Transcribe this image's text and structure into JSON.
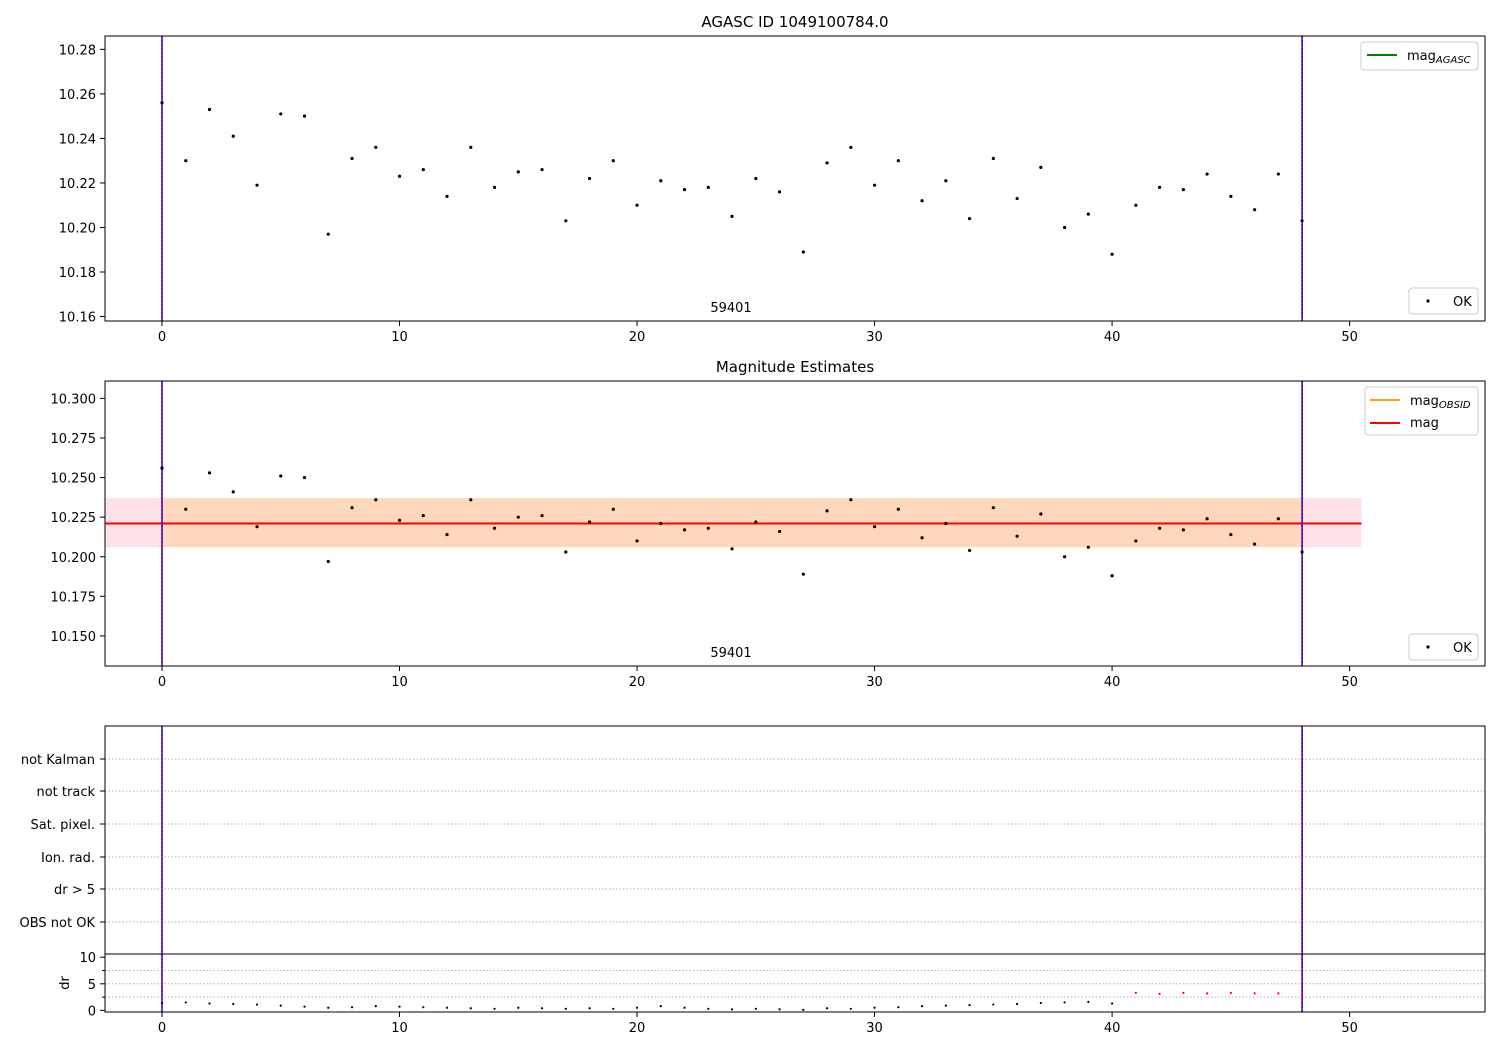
{
  "chart_data": [
    {
      "type": "scatter",
      "title": "AGASC ID 1049100784.0",
      "xlim": [
        -2.4,
        55.7
      ],
      "ylim": [
        10.158,
        10.286
      ],
      "xticks": [
        0,
        10,
        20,
        30,
        40,
        50
      ],
      "yticks": [
        10.16,
        10.18,
        10.2,
        10.22,
        10.24,
        10.26,
        10.28
      ],
      "ytick_labels": [
        "10.16",
        "10.18",
        "10.20",
        "10.22",
        "10.24",
        "10.26",
        "10.28"
      ],
      "vlines": [
        0,
        48
      ],
      "annotation": {
        "text": "59401",
        "x": 23.8
      },
      "legend_upper": {
        "entries": [
          {
            "label": "mag",
            "subscript": "AGASC",
            "color": "#008000"
          }
        ],
        "placement": "upper-right"
      },
      "legend_lower": {
        "entries": [
          {
            "label": "OK"
          }
        ],
        "placement": "lower-right"
      },
      "series": [
        {
          "name": "OK",
          "x": [
            0,
            1,
            2,
            3,
            4,
            5,
            6,
            7,
            8,
            9,
            10,
            11,
            12,
            13,
            14,
            15,
            16,
            17,
            18,
            19,
            20,
            21,
            22,
            23,
            24,
            25,
            26,
            27,
            28,
            29,
            30,
            31,
            32,
            33,
            34,
            35,
            36,
            37,
            38,
            39,
            40,
            41,
            42,
            43,
            44,
            45,
            46,
            47,
            48
          ],
          "y": [
            10.256,
            10.23,
            10.253,
            10.241,
            10.219,
            10.251,
            10.25,
            10.197,
            10.231,
            10.236,
            10.223,
            10.226,
            10.214,
            10.236,
            10.218,
            10.225,
            10.226,
            10.203,
            10.222,
            10.23,
            10.21,
            10.221,
            10.217,
            10.218,
            10.205,
            10.222,
            10.216,
            10.189,
            10.229,
            10.236,
            10.219,
            10.23,
            10.212,
            10.221,
            10.204,
            10.231,
            10.213,
            10.227,
            10.2,
            10.206,
            10.188,
            10.21,
            10.218,
            10.217,
            10.224,
            10.214,
            10.208,
            10.224,
            10.203
          ]
        }
      ]
    },
    {
      "type": "scatter",
      "title": "Magnitude Estimates",
      "xlim": [
        -2.4,
        55.7
      ],
      "ylim": [
        10.131,
        10.311
      ],
      "xticks": [
        0,
        10,
        20,
        30,
        40,
        50
      ],
      "yticks": [
        10.15,
        10.175,
        10.2,
        10.225,
        10.25,
        10.275,
        10.3
      ],
      "ytick_labels": [
        "10.150",
        "10.175",
        "10.200",
        "10.225",
        "10.250",
        "10.275",
        "10.300"
      ],
      "vlines": [
        0,
        48
      ],
      "annotation": {
        "text": "59401",
        "x": 23.8
      },
      "mag_line": {
        "y": 10.221,
        "x0": -2.4,
        "x1": 50.5
      },
      "mag_band": {
        "y0": 10.206,
        "y1": 10.237,
        "x0": -2.4,
        "x1": 50.5
      },
      "obsid_band": {
        "y0": 10.206,
        "y1": 10.237,
        "x0": 0,
        "x1": 48
      },
      "legend_upper": {
        "entries": [
          {
            "label": "mag",
            "subscript": "OBSID",
            "color": "#ffa500"
          },
          {
            "label": "mag",
            "subscript": "",
            "color": "#ff0000"
          }
        ],
        "placement": "upper-right"
      },
      "legend_lower": {
        "entries": [
          {
            "label": "OK"
          }
        ],
        "placement": "lower-right"
      },
      "series": [
        {
          "name": "OK",
          "x": [
            0,
            1,
            2,
            3,
            4,
            5,
            6,
            7,
            8,
            9,
            10,
            11,
            12,
            13,
            14,
            15,
            16,
            17,
            18,
            19,
            20,
            21,
            22,
            23,
            24,
            25,
            26,
            27,
            28,
            29,
            30,
            31,
            32,
            33,
            34,
            35,
            36,
            37,
            38,
            39,
            40,
            41,
            42,
            43,
            44,
            45,
            46,
            47,
            48
          ],
          "y": [
            10.256,
            10.23,
            10.253,
            10.241,
            10.219,
            10.251,
            10.25,
            10.197,
            10.231,
            10.236,
            10.223,
            10.226,
            10.214,
            10.236,
            10.218,
            10.225,
            10.226,
            10.203,
            10.222,
            10.23,
            10.21,
            10.221,
            10.217,
            10.218,
            10.205,
            10.222,
            10.216,
            10.189,
            10.229,
            10.236,
            10.219,
            10.23,
            10.212,
            10.221,
            10.204,
            10.231,
            10.213,
            10.227,
            10.2,
            10.206,
            10.188,
            10.21,
            10.218,
            10.217,
            10.224,
            10.214,
            10.208,
            10.224,
            10.203
          ]
        }
      ]
    },
    {
      "type": "scatter",
      "title": "",
      "xlim": [
        -2.4,
        55.7
      ],
      "categories": [
        "not Kalman",
        "not track",
        "Sat. pixel.",
        "Ion. rad.",
        "dr > 5",
        "OBS not OK"
      ],
      "vlines": [
        0,
        48
      ]
    },
    {
      "type": "scatter",
      "title": "",
      "ylabel": "dr",
      "xlim": [
        -2.4,
        55.7
      ],
      "ylim": [
        -0.3,
        10.6
      ],
      "xticks": [
        0,
        10,
        20,
        30,
        40,
        50
      ],
      "yticks": [
        0,
        5,
        10
      ],
      "vlines": [
        0,
        48
      ],
      "series": [
        {
          "name": "",
          "color": "#000000",
          "x": [
            0,
            1,
            2,
            3,
            4,
            5,
            6,
            7,
            8,
            9,
            10,
            11,
            12,
            13,
            14,
            15,
            16,
            17,
            18,
            19,
            20,
            21,
            22,
            23,
            24,
            25,
            26,
            27,
            28,
            29,
            30,
            31,
            32,
            33,
            34,
            35,
            36,
            37,
            38,
            39,
            40
          ],
          "y": [
            1.4,
            1.5,
            1.3,
            1.2,
            1.1,
            0.9,
            0.7,
            0.5,
            0.6,
            0.8,
            0.7,
            0.6,
            0.5,
            0.4,
            0.3,
            0.5,
            0.4,
            0.3,
            0.4,
            0.3,
            0.5,
            0.8,
            0.5,
            0.3,
            0.2,
            0.3,
            0.2,
            0.1,
            0.4,
            0.3,
            0.5,
            0.6,
            0.8,
            0.9,
            1.0,
            1.1,
            1.2,
            1.4,
            1.5,
            1.6,
            1.3
          ]
        },
        {
          "name": "",
          "color": "#ff0000",
          "x": [
            41,
            42,
            43,
            44,
            45,
            46,
            47,
            48
          ],
          "y": [
            3.3,
            3.1,
            3.3,
            3.2,
            3.3,
            3.2,
            3.2,
            3.0
          ]
        }
      ]
    }
  ]
}
